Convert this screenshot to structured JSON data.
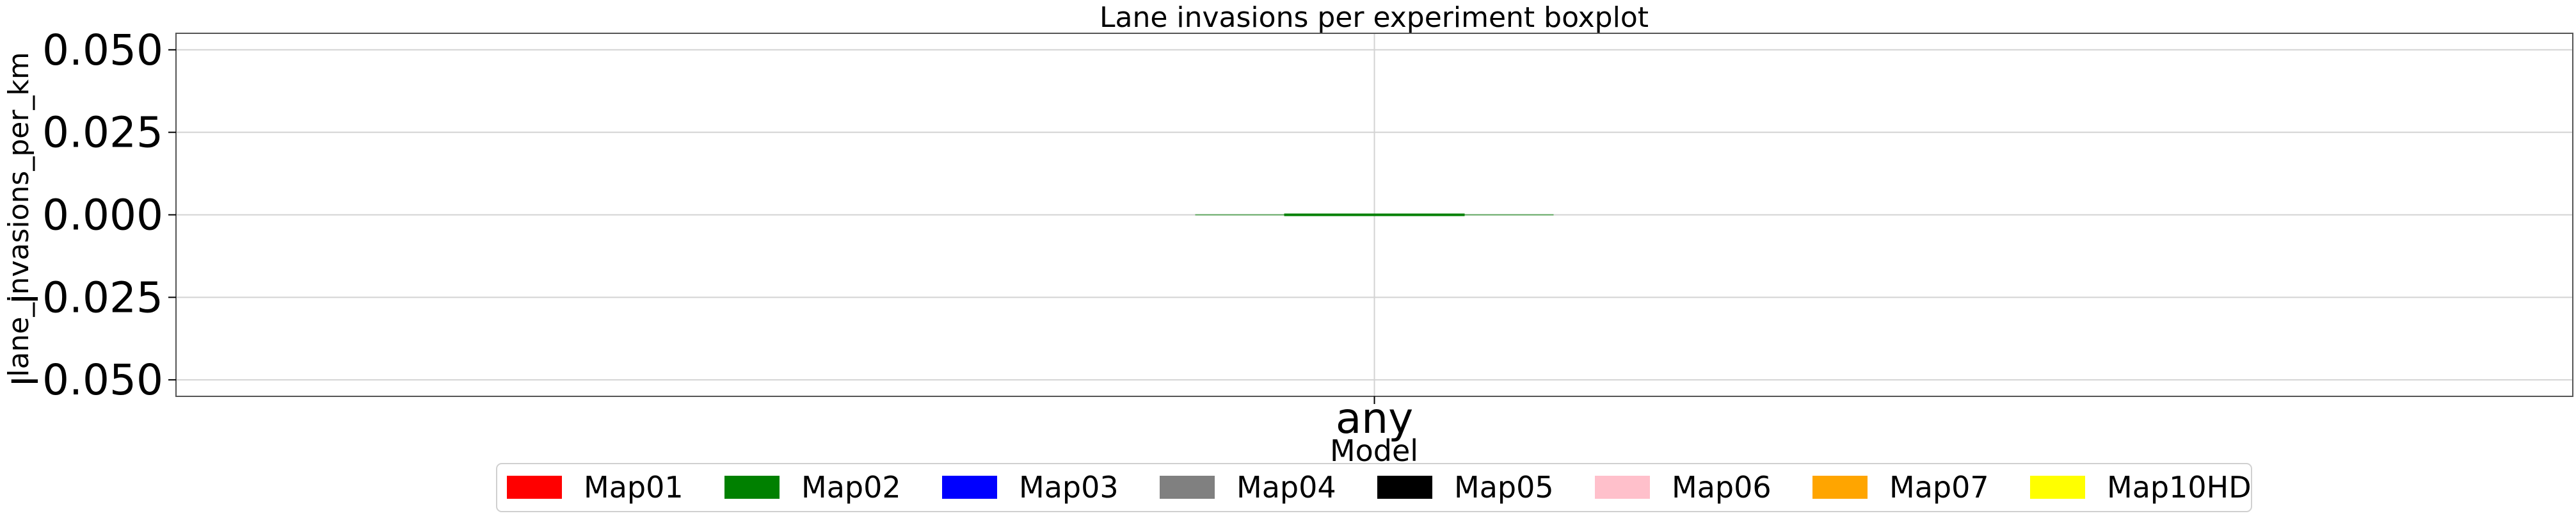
{
  "chart_data": {
    "type": "boxplot",
    "title": "Lane invasions per experiment boxplot",
    "xlabel": "Model",
    "ylabel": "lane_invasions_per_km",
    "categories": [
      "any"
    ],
    "ylim": [
      -0.055,
      0.055
    ],
    "yticks": [
      -0.05,
      -0.025,
      0.0,
      0.025,
      0.05
    ],
    "ytick_labels": [
      "−0.050",
      "−0.025",
      "0.000",
      "0.025",
      "0.050"
    ],
    "grid": true,
    "boxes": [
      {
        "category": "any",
        "series": "Map02",
        "min": 0.0,
        "q1": 0.0,
        "median": 0.0,
        "q3": 0.0,
        "max": 0.0
      }
    ],
    "legend": {
      "placement": "bottom-center",
      "entries": [
        {
          "label": "Map01",
          "color": "#ff0000"
        },
        {
          "label": "Map02",
          "color": "#008000"
        },
        {
          "label": "Map03",
          "color": "#0000ff"
        },
        {
          "label": "Map04",
          "color": "#808080"
        },
        {
          "label": "Map05",
          "color": "#000000"
        },
        {
          "label": "Map06",
          "color": "#ffc0cb"
        },
        {
          "label": "Map07",
          "color": "#ffa500"
        },
        {
          "label": "Map10HD",
          "color": "#ffff00"
        }
      ]
    }
  }
}
